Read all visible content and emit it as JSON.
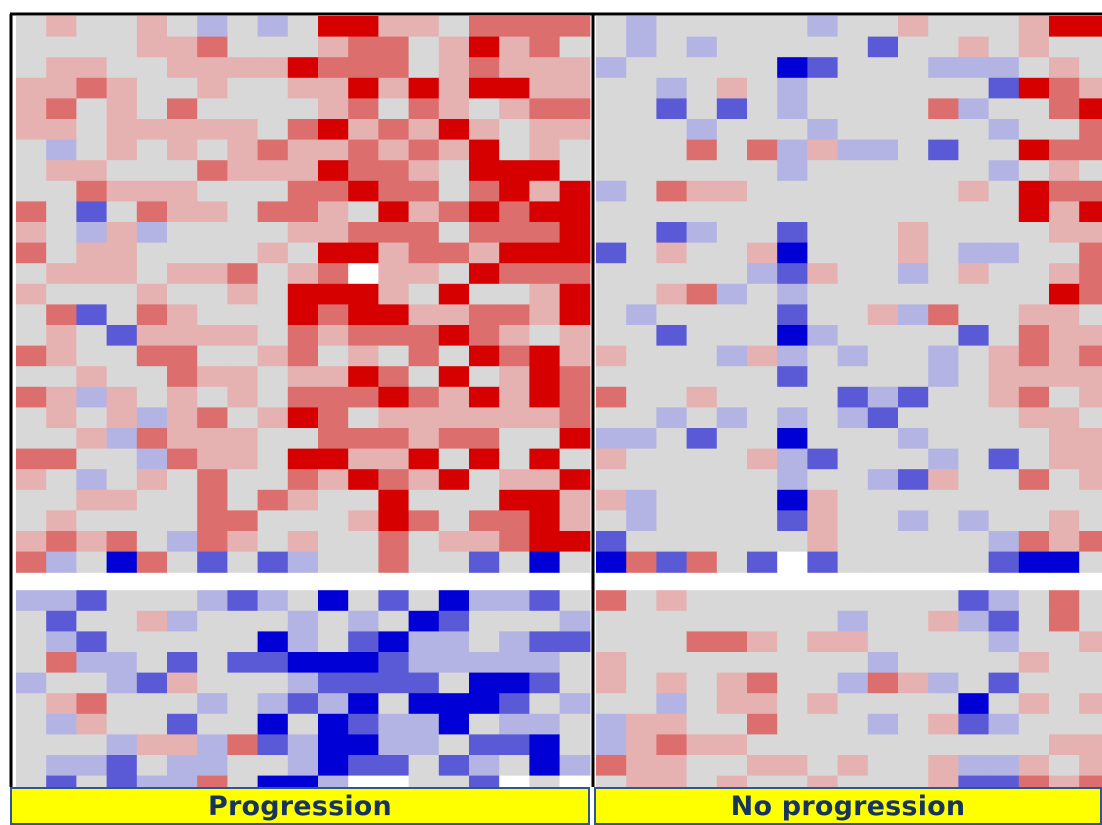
{
  "chart_data": {
    "type": "heatmap",
    "title": "",
    "xlabel": "",
    "ylabel": "",
    "grid": false,
    "legend": "none",
    "colors": {
      "neutral": "#d8d8d8",
      "up_light": "#e6b1b1",
      "up_mid": "#dc6e6e",
      "up_strong": "#d60000",
      "down_light": "#b3b3e4",
      "down_mid": "#5a5ad6",
      "down_strong": "#0000d6",
      "missing": "#ffffff",
      "label_background": "#ffff00",
      "label_text": "#17345f",
      "label_border": "#2f5597",
      "panel_border": "#000000"
    },
    "groups": [
      {
        "label": "Progression",
        "dominant_upper_block": "red"
      },
      {
        "label": "No progression",
        "dominant_upper_block": "neutral"
      }
    ]
  }
}
